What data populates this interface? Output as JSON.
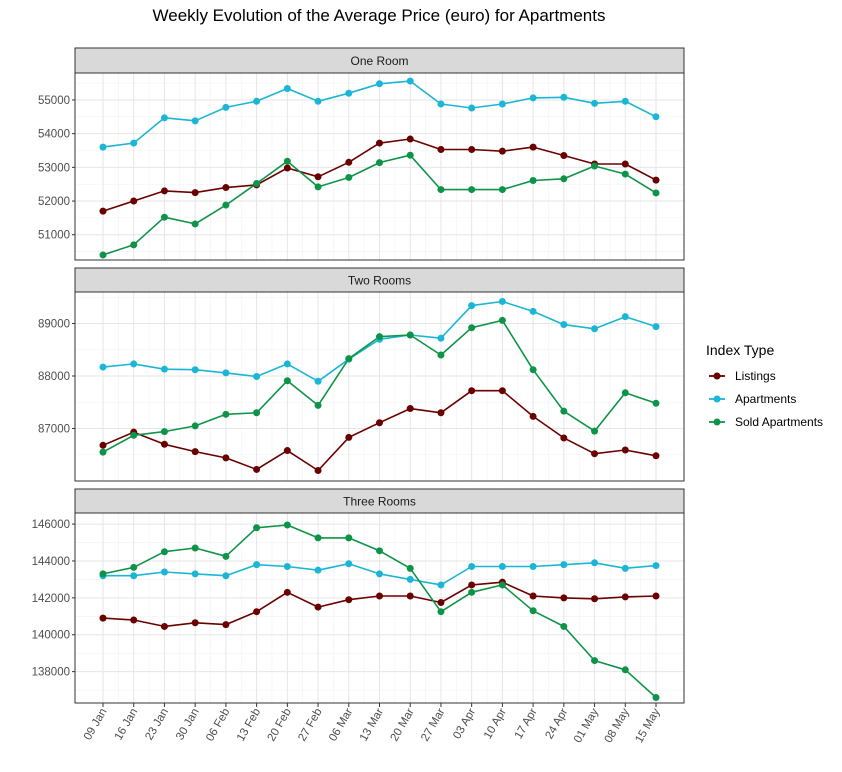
{
  "colors": {
    "listings": "#6b0000",
    "apartments": "#1bb6d5",
    "sold": "#0e9448",
    "strip_fill": "#d9d9d9",
    "grid_major": "#e6e6e6",
    "grid_minor": "#f2f2f2",
    "panel_border": "#333333"
  },
  "chart_data": {
    "type": "line",
    "title": "Weekly Evolution of the Average Price (euro) for Apartments",
    "legend": {
      "title": "Index Type",
      "placement": "right",
      "entries": [
        "Listings",
        "Apartments",
        "Sold Apartments"
      ]
    },
    "grid": true,
    "categories": [
      "09 Jan",
      "16 Jan",
      "23 Jan",
      "30 Jan",
      "06 Feb",
      "13 Feb",
      "20 Feb",
      "27 Feb",
      "06 Mar",
      "13 Mar",
      "20 Mar",
      "27 Mar",
      "03 Apr",
      "10 Apr",
      "17 Apr",
      "24 Apr",
      "01 May",
      "08 May",
      "15 May"
    ],
    "panels": [
      {
        "label": "One Room",
        "ylim": [
          50250,
          55800
        ],
        "yticks": [
          51000,
          52000,
          53000,
          54000,
          55000
        ],
        "series": [
          {
            "name": "Listings",
            "values": [
              51700,
              52000,
              52300,
              52250,
              52400,
              52480,
              52980,
              52720,
              53150,
              53720,
              53840,
              53530,
              53530,
              53480,
              53600,
              53350,
              53100,
              53100,
              52620
            ]
          },
          {
            "name": "Apartments",
            "values": [
              53600,
              53720,
              54470,
              54380,
              54780,
              54960,
              55340,
              54960,
              55200,
              55480,
              55560,
              54880,
              54760,
              54880,
              55060,
              55080,
              54900,
              54960,
              54500
            ]
          },
          {
            "name": "Sold Apartments",
            "values": [
              50400,
              50700,
              51520,
              51320,
              51880,
              52520,
              53180,
              52420,
              52700,
              53140,
              53360,
              52340,
              52340,
              52340,
              52610,
              52660,
              53040,
              52800,
              52240
            ]
          }
        ]
      },
      {
        "label": "Two Rooms",
        "ylim": [
          86000,
          89600
        ],
        "yticks": [
          87000,
          88000,
          89000
        ],
        "series": [
          {
            "name": "Listings",
            "values": [
              86680,
              86930,
              86700,
              86560,
              86440,
              86220,
              86580,
              86200,
              86830,
              87110,
              87380,
              87300,
              87720,
              87720,
              87230,
              86820,
              86520,
              86590,
              86480
            ]
          },
          {
            "name": "Apartments",
            "values": [
              88170,
              88230,
              88130,
              88120,
              88060,
              87990,
              88230,
              87900,
              88320,
              88700,
              88780,
              88720,
              89340,
              89420,
              89230,
              88980,
              88900,
              89130,
              88940
            ]
          },
          {
            "name": "Sold Apartments",
            "values": [
              86550,
              86870,
              86940,
              87050,
              87270,
              87300,
              87910,
              87440,
              88330,
              88750,
              88780,
              88400,
              88920,
              89060,
              88120,
              87330,
              86950,
              87680,
              87480
            ]
          }
        ]
      },
      {
        "label": "Three Rooms",
        "ylim": [
          136300,
          146600
        ],
        "yticks": [
          138000,
          140000,
          142000,
          144000,
          146000
        ],
        "series": [
          {
            "name": "Listings",
            "values": [
              140900,
              140800,
              140450,
              140650,
              140550,
              141250,
              142300,
              141500,
              141900,
              142100,
              142100,
              141750,
              142700,
              142850,
              142100,
              142000,
              141950,
              142050,
              142100
            ]
          },
          {
            "name": "Apartments",
            "values": [
              143200,
              143200,
              143400,
              143300,
              143200,
              143800,
              143700,
              143500,
              143850,
              143300,
              143000,
              142700,
              143700,
              143700,
              143700,
              143800,
              143900,
              143600,
              143750
            ]
          },
          {
            "name": "Sold Apartments",
            "values": [
              143300,
              143650,
              144500,
              144700,
              144250,
              145800,
              145950,
              145250,
              145250,
              144550,
              143600,
              141250,
              142300,
              142700,
              141300,
              140450,
              138600,
              138100,
              136600
            ]
          }
        ]
      }
    ]
  }
}
